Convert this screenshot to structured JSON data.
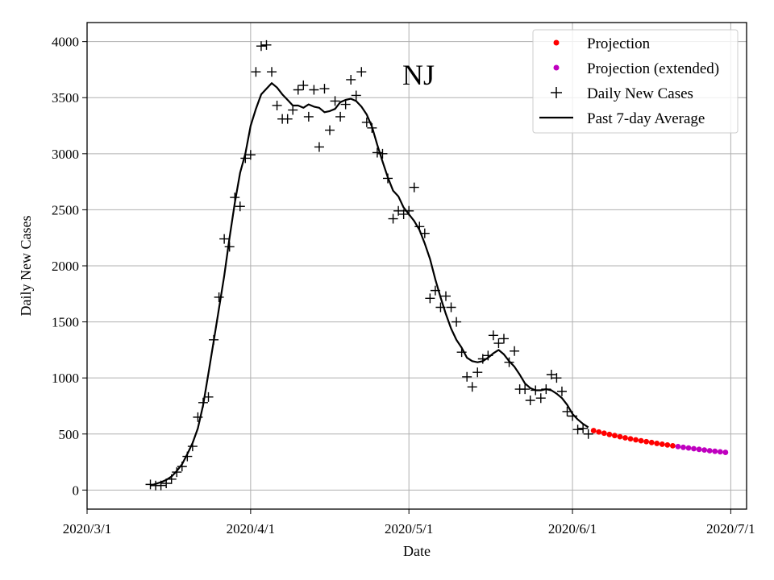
{
  "chart_data": {
    "type": "scatter",
    "title": "NJ",
    "xlabel": "Date",
    "ylabel": "Daily New Cases",
    "xlim": [
      "2020-03-01",
      "2020-07-04"
    ],
    "ylim": [
      -170,
      4170
    ],
    "grid": true,
    "legend_position": "top-right",
    "x_ticks": [
      {
        "date": "2020-03-01",
        "label": "2020/3/1"
      },
      {
        "date": "2020-04-01",
        "label": "2020/4/1"
      },
      {
        "date": "2020-05-01",
        "label": "2020/5/1"
      },
      {
        "date": "2020-06-01",
        "label": "2020/6/1"
      },
      {
        "date": "2020-07-01",
        "label": "2020/7/1"
      }
    ],
    "y_ticks": [
      0,
      500,
      1000,
      1500,
      2000,
      2500,
      3000,
      3500,
      4000
    ],
    "series": [
      {
        "name": "Projection",
        "style": "dots",
        "color": "#ff0000",
        "points": [
          [
            "2020-06-05",
            530
          ],
          [
            "2020-06-06",
            518
          ],
          [
            "2020-06-07",
            507
          ],
          [
            "2020-06-08",
            496
          ],
          [
            "2020-06-09",
            486
          ],
          [
            "2020-06-10",
            476
          ],
          [
            "2020-06-11",
            466
          ],
          [
            "2020-06-12",
            457
          ],
          [
            "2020-06-13",
            448
          ],
          [
            "2020-06-14",
            440
          ],
          [
            "2020-06-15",
            432
          ],
          [
            "2020-06-16",
            424
          ],
          [
            "2020-06-17",
            416
          ],
          [
            "2020-06-18",
            409
          ],
          [
            "2020-06-19",
            402
          ],
          [
            "2020-06-20",
            395
          ]
        ]
      },
      {
        "name": "Projection (extended)",
        "style": "dots",
        "color": "#bf00bf",
        "points": [
          [
            "2020-06-21",
            388
          ],
          [
            "2020-06-22",
            381
          ],
          [
            "2020-06-23",
            375
          ],
          [
            "2020-06-24",
            369
          ],
          [
            "2020-06-25",
            363
          ],
          [
            "2020-06-26",
            357
          ],
          [
            "2020-06-27",
            351
          ],
          [
            "2020-06-28",
            346
          ],
          [
            "2020-06-29",
            341
          ],
          [
            "2020-06-30",
            336
          ]
        ]
      },
      {
        "name": "Daily New Cases",
        "style": "plus",
        "color": "#000000",
        "points": [
          [
            "2020-03-13",
            50
          ],
          [
            "2020-03-14",
            40
          ],
          [
            "2020-03-15",
            41
          ],
          [
            "2020-03-16",
            60
          ],
          [
            "2020-03-17",
            97
          ],
          [
            "2020-03-18",
            160
          ],
          [
            "2020-03-19",
            210
          ],
          [
            "2020-03-20",
            300
          ],
          [
            "2020-03-21",
            390
          ],
          [
            "2020-03-22",
            650
          ],
          [
            "2020-03-23",
            780
          ],
          [
            "2020-03-24",
            830
          ],
          [
            "2020-03-25",
            1340
          ],
          [
            "2020-03-26",
            1720
          ],
          [
            "2020-03-27",
            2240
          ],
          [
            "2020-03-28",
            2170
          ],
          [
            "2020-03-29",
            2610
          ],
          [
            "2020-03-30",
            2530
          ],
          [
            "2020-03-31",
            2960
          ],
          [
            "2020-04-01",
            2990
          ],
          [
            "2020-04-02",
            3730
          ],
          [
            "2020-04-03",
            3960
          ],
          [
            "2020-04-04",
            3970
          ],
          [
            "2020-04-05",
            3730
          ],
          [
            "2020-04-06",
            3430
          ],
          [
            "2020-04-07",
            3310
          ],
          [
            "2020-04-08",
            3310
          ],
          [
            "2020-04-09",
            3390
          ],
          [
            "2020-04-10",
            3570
          ],
          [
            "2020-04-11",
            3610
          ],
          [
            "2020-04-12",
            3330
          ],
          [
            "2020-04-13",
            3570
          ],
          [
            "2020-04-14",
            3060
          ],
          [
            "2020-04-15",
            3580
          ],
          [
            "2020-04-16",
            3210
          ],
          [
            "2020-04-17",
            3470
          ],
          [
            "2020-04-18",
            3330
          ],
          [
            "2020-04-19",
            3440
          ],
          [
            "2020-04-20",
            3660
          ],
          [
            "2020-04-21",
            3520
          ],
          [
            "2020-04-22",
            3730
          ],
          [
            "2020-04-23",
            3280
          ],
          [
            "2020-04-24",
            3230
          ],
          [
            "2020-04-25",
            3010
          ],
          [
            "2020-04-26",
            3000
          ],
          [
            "2020-04-27",
            2780
          ],
          [
            "2020-04-28",
            2420
          ],
          [
            "2020-04-29",
            2490
          ],
          [
            "2020-04-30",
            2460
          ],
          [
            "2020-05-01",
            2490
          ],
          [
            "2020-05-02",
            2700
          ],
          [
            "2020-05-03",
            2350
          ],
          [
            "2020-05-04",
            2290
          ],
          [
            "2020-05-05",
            1710
          ],
          [
            "2020-05-06",
            1780
          ],
          [
            "2020-05-07",
            1630
          ],
          [
            "2020-05-08",
            1730
          ],
          [
            "2020-05-09",
            1630
          ],
          [
            "2020-05-10",
            1500
          ],
          [
            "2020-05-11",
            1230
          ],
          [
            "2020-05-12",
            1010
          ],
          [
            "2020-05-13",
            920
          ],
          [
            "2020-05-14",
            1050
          ],
          [
            "2020-05-15",
            1170
          ],
          [
            "2020-05-16",
            1200
          ],
          [
            "2020-05-17",
            1380
          ],
          [
            "2020-05-18",
            1310
          ],
          [
            "2020-05-19",
            1350
          ],
          [
            "2020-05-20",
            1140
          ],
          [
            "2020-05-21",
            1240
          ],
          [
            "2020-05-22",
            900
          ],
          [
            "2020-05-23",
            900
          ],
          [
            "2020-05-24",
            800
          ],
          [
            "2020-05-25",
            890
          ],
          [
            "2020-05-26",
            820
          ],
          [
            "2020-05-27",
            900
          ],
          [
            "2020-05-28",
            1030
          ],
          [
            "2020-05-29",
            1000
          ],
          [
            "2020-05-30",
            880
          ],
          [
            "2020-05-31",
            700
          ],
          [
            "2020-06-01",
            660
          ],
          [
            "2020-06-02",
            540
          ],
          [
            "2020-06-03",
            550
          ],
          [
            "2020-06-04",
            500
          ]
        ]
      },
      {
        "name": "Past 7-day Average",
        "style": "line",
        "color": "#000000",
        "points": [
          [
            "2020-03-13",
            40
          ],
          [
            "2020-03-14",
            55
          ],
          [
            "2020-03-15",
            70
          ],
          [
            "2020-03-16",
            90
          ],
          [
            "2020-03-17",
            120
          ],
          [
            "2020-03-18",
            170
          ],
          [
            "2020-03-19",
            230
          ],
          [
            "2020-03-20",
            320
          ],
          [
            "2020-03-21",
            420
          ],
          [
            "2020-03-22",
            550
          ],
          [
            "2020-03-23",
            760
          ],
          [
            "2020-03-24",
            1040
          ],
          [
            "2020-03-25",
            1330
          ],
          [
            "2020-03-26",
            1620
          ],
          [
            "2020-03-27",
            1910
          ],
          [
            "2020-03-28",
            2250
          ],
          [
            "2020-03-29",
            2560
          ],
          [
            "2020-03-30",
            2830
          ],
          [
            "2020-03-31",
            3000
          ],
          [
            "2020-04-01",
            3250
          ],
          [
            "2020-04-02",
            3400
          ],
          [
            "2020-04-03",
            3530
          ],
          [
            "2020-04-04",
            3580
          ],
          [
            "2020-04-05",
            3630
          ],
          [
            "2020-04-06",
            3590
          ],
          [
            "2020-04-07",
            3530
          ],
          [
            "2020-04-08",
            3480
          ],
          [
            "2020-04-09",
            3430
          ],
          [
            "2020-04-10",
            3430
          ],
          [
            "2020-04-11",
            3410
          ],
          [
            "2020-04-12",
            3440
          ],
          [
            "2020-04-13",
            3420
          ],
          [
            "2020-04-14",
            3410
          ],
          [
            "2020-04-15",
            3370
          ],
          [
            "2020-04-16",
            3380
          ],
          [
            "2020-04-17",
            3400
          ],
          [
            "2020-04-18",
            3460
          ],
          [
            "2020-04-19",
            3480
          ],
          [
            "2020-04-20",
            3490
          ],
          [
            "2020-04-21",
            3470
          ],
          [
            "2020-04-22",
            3420
          ],
          [
            "2020-04-23",
            3350
          ],
          [
            "2020-04-24",
            3240
          ],
          [
            "2020-04-25",
            3080
          ],
          [
            "2020-04-26",
            2930
          ],
          [
            "2020-04-27",
            2790
          ],
          [
            "2020-04-28",
            2670
          ],
          [
            "2020-04-29",
            2620
          ],
          [
            "2020-04-30",
            2520
          ],
          [
            "2020-05-01",
            2460
          ],
          [
            "2020-05-02",
            2400
          ],
          [
            "2020-05-03",
            2320
          ],
          [
            "2020-05-04",
            2200
          ],
          [
            "2020-05-05",
            2060
          ],
          [
            "2020-05-06",
            1880
          ],
          [
            "2020-05-07",
            1720
          ],
          [
            "2020-05-08",
            1570
          ],
          [
            "2020-05-09",
            1440
          ],
          [
            "2020-05-10",
            1340
          ],
          [
            "2020-05-11",
            1270
          ],
          [
            "2020-05-12",
            1180
          ],
          [
            "2020-05-13",
            1150
          ],
          [
            "2020-05-14",
            1140
          ],
          [
            "2020-05-15",
            1150
          ],
          [
            "2020-05-16",
            1180
          ],
          [
            "2020-05-17",
            1220
          ],
          [
            "2020-05-18",
            1250
          ],
          [
            "2020-05-19",
            1210
          ],
          [
            "2020-05-20",
            1150
          ],
          [
            "2020-05-21",
            1100
          ],
          [
            "2020-05-22",
            1030
          ],
          [
            "2020-05-23",
            950
          ],
          [
            "2020-05-24",
            910
          ],
          [
            "2020-05-25",
            890
          ],
          [
            "2020-05-26",
            890
          ],
          [
            "2020-05-27",
            900
          ],
          [
            "2020-05-28",
            890
          ],
          [
            "2020-05-29",
            860
          ],
          [
            "2020-05-30",
            820
          ],
          [
            "2020-05-31",
            760
          ],
          [
            "2020-06-01",
            680
          ],
          [
            "2020-06-02",
            630
          ],
          [
            "2020-06-03",
            590
          ],
          [
            "2020-06-04",
            560
          ]
        ]
      }
    ]
  }
}
